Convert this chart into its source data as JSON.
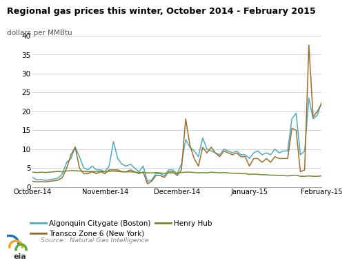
{
  "title": "Regional gas prices this winter, October 2014 - February 2015",
  "ylabel": "dollars per MMBtu",
  "source": "Source:  Natural Gas Intelligence",
  "ylim": [
    0,
    40
  ],
  "yticks": [
    0,
    5,
    10,
    15,
    20,
    25,
    30,
    35,
    40
  ],
  "colors": {
    "algonquin": "#4bacc6",
    "transco": "#9c6c2a",
    "henry": "#6b8e23"
  },
  "legend_labels": [
    "Algonquin Citygate (Boston)",
    "Transco Zone 6 (New York)",
    "Henry Hub"
  ],
  "xtick_labels": [
    "October-14",
    "November-14",
    "December-14",
    "January-15",
    "February-15"
  ],
  "algonquin": [
    2.5,
    1.8,
    2.0,
    1.7,
    1.9,
    2.1,
    2.3,
    3.5,
    6.5,
    7.5,
    10.5,
    8.0,
    5.0,
    4.5,
    5.5,
    4.5,
    4.5,
    4.0,
    5.5,
    12.0,
    7.5,
    6.0,
    5.5,
    6.0,
    5.0,
    4.0,
    5.5,
    1.5,
    1.8,
    3.5,
    3.5,
    3.0,
    4.5,
    4.5,
    3.5,
    6.0,
    12.5,
    10.5,
    9.5,
    8.0,
    13.0,
    10.0,
    9.5,
    9.0,
    8.5,
    10.0,
    9.5,
    9.0,
    9.5,
    8.5,
    8.5,
    7.5,
    9.0,
    9.5,
    8.5,
    9.0,
    8.5,
    10.0,
    9.0,
    9.5,
    9.5,
    18.0,
    19.5,
    8.5,
    9.5,
    23.5,
    18.0,
    19.0,
    22.5
  ],
  "transco": [
    1.5,
    1.3,
    1.4,
    1.3,
    1.5,
    1.6,
    1.8,
    2.5,
    5.0,
    8.5,
    10.5,
    5.0,
    3.5,
    3.5,
    4.0,
    3.5,
    4.0,
    3.5,
    4.5,
    4.5,
    4.5,
    4.0,
    4.0,
    4.5,
    4.0,
    3.5,
    4.0,
    0.8,
    1.5,
    3.0,
    3.0,
    2.5,
    4.0,
    4.0,
    3.0,
    4.5,
    18.0,
    11.0,
    7.5,
    5.5,
    10.5,
    9.0,
    10.5,
    9.0,
    8.0,
    9.5,
    9.0,
    8.5,
    9.0,
    8.0,
    8.0,
    5.5,
    7.5,
    7.5,
    6.5,
    7.5,
    6.5,
    8.0,
    7.5,
    7.5,
    7.5,
    15.5,
    15.0,
    4.0,
    4.5,
    37.5,
    18.5,
    20.0,
    22.0
  ],
  "henry": [
    3.9,
    3.8,
    3.9,
    3.8,
    3.9,
    4.0,
    4.1,
    4.0,
    4.2,
    4.3,
    4.3,
    4.2,
    4.1,
    4.0,
    4.1,
    4.0,
    4.1,
    4.0,
    4.1,
    4.2,
    4.1,
    4.0,
    4.0,
    4.0,
    3.9,
    3.8,
    3.8,
    3.7,
    3.7,
    3.8,
    3.7,
    3.6,
    3.7,
    3.7,
    3.6,
    3.8,
    3.9,
    3.9,
    3.8,
    3.7,
    3.8,
    3.7,
    3.9,
    3.8,
    3.7,
    3.8,
    3.7,
    3.6,
    3.6,
    3.5,
    3.5,
    3.3,
    3.4,
    3.3,
    3.2,
    3.2,
    3.1,
    3.1,
    3.0,
    3.0,
    2.9,
    3.0,
    3.1,
    2.8,
    2.8,
    2.9,
    2.8,
    2.8,
    2.9
  ]
}
